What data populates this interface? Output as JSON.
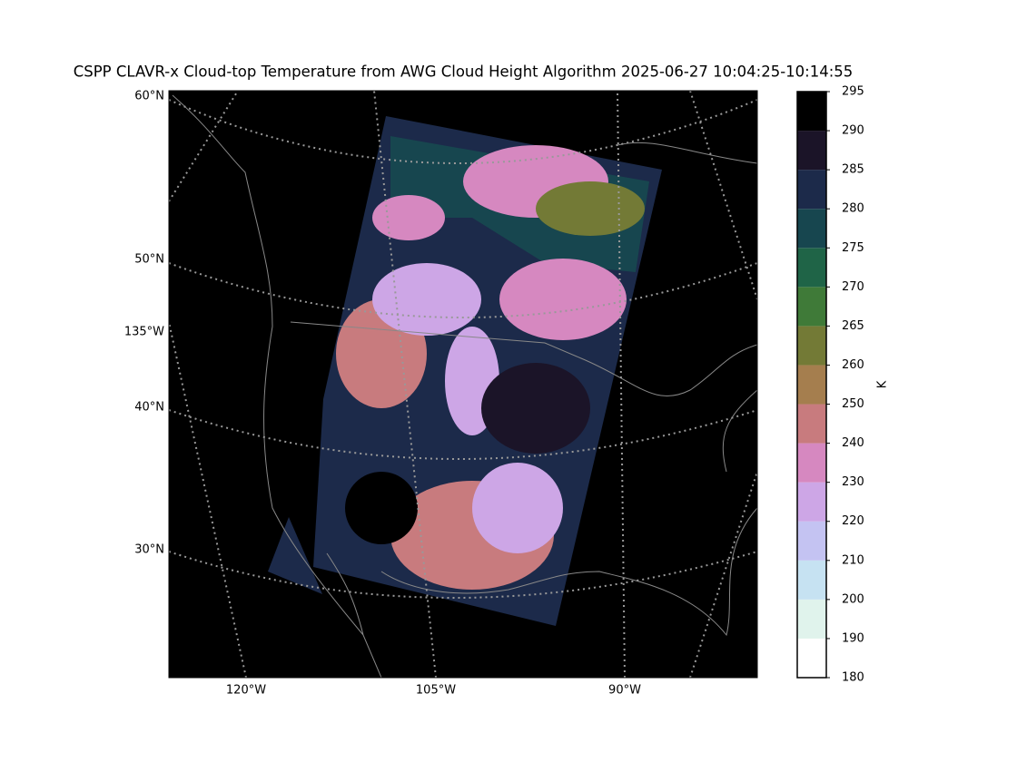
{
  "title": "CSPP CLAVR-x Cloud-top Temperature from AWG Cloud Height Algorithm 2025-06-27 10:04:25-10:14:55",
  "map": {
    "lat_labels": [
      "60°N",
      "50°N",
      "135°W",
      "40°N",
      "30°N"
    ],
    "lon_labels": [
      "120°W",
      "105°W",
      "90°W"
    ]
  },
  "colorbar": {
    "label": "K",
    "ticks": [
      180,
      190,
      200,
      210,
      220,
      230,
      240,
      250,
      260,
      265,
      270,
      275,
      280,
      285,
      290,
      295
    ],
    "colors": [
      "#ffffff",
      "#e0f3ec",
      "#c6e2f2",
      "#c4c3f2",
      "#cda6e6",
      "#d688c0",
      "#c87b7e",
      "#a57e4e",
      "#737a36",
      "#3f7a38",
      "#1f6447",
      "#17464f",
      "#1c2a4a",
      "#1b1428",
      "#000000"
    ]
  }
}
